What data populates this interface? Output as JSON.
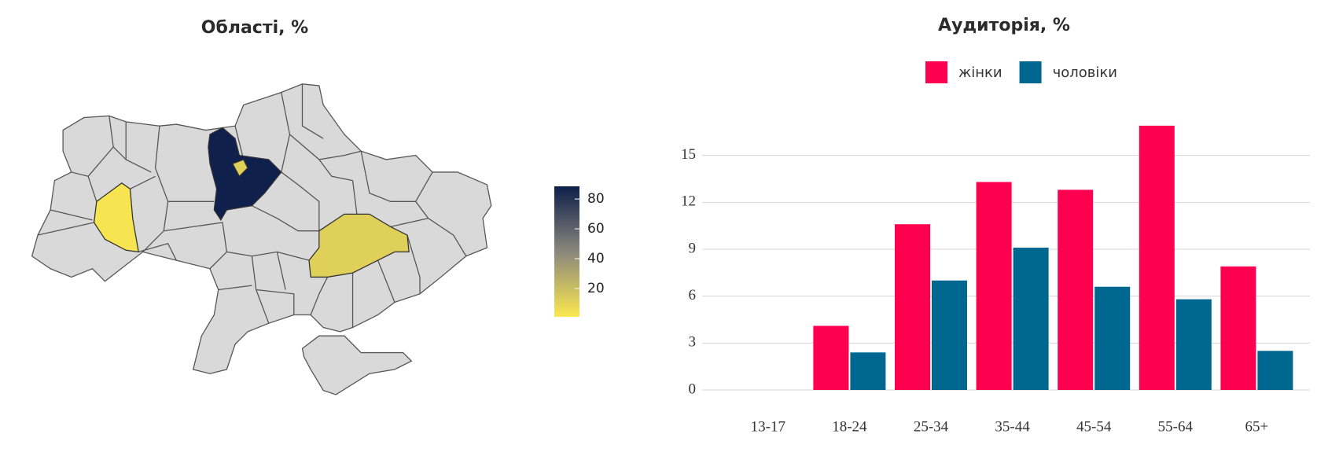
{
  "chart_data": [
    {
      "type": "choropleth",
      "title": "Області, %",
      "values": [
        88,
        12,
        12,
        3
      ],
      "colorscale": [
        "#fbe84f",
        "#8a877c",
        "#0d1f4a"
      ],
      "ylim": [
        1,
        88.5
      ],
      "yticks": [
        20,
        40,
        60,
        80
      ],
      "region_color": "#d9d9d9"
    },
    {
      "type": "bar",
      "title": "Аудиторія, %",
      "categories": [
        "13-17",
        "18-24",
        "25-34",
        "35-44",
        "45-54",
        "55-64",
        "65+"
      ],
      "series": [
        {
          "name": "жінки",
          "color": "#ff0050",
          "values": [
            null,
            4.1,
            10.6,
            13.3,
            12.8,
            16.9,
            7.9
          ]
        },
        {
          "name": "чоловіки",
          "color": "#006890",
          "values": [
            null,
            2.4,
            7.0,
            9.1,
            6.6,
            5.8,
            2.5
          ]
        }
      ],
      "ylim": [
        0,
        18
      ],
      "yticks": [
        0,
        3,
        6,
        9,
        12,
        15
      ],
      "grid": true,
      "legend": "top"
    }
  ]
}
